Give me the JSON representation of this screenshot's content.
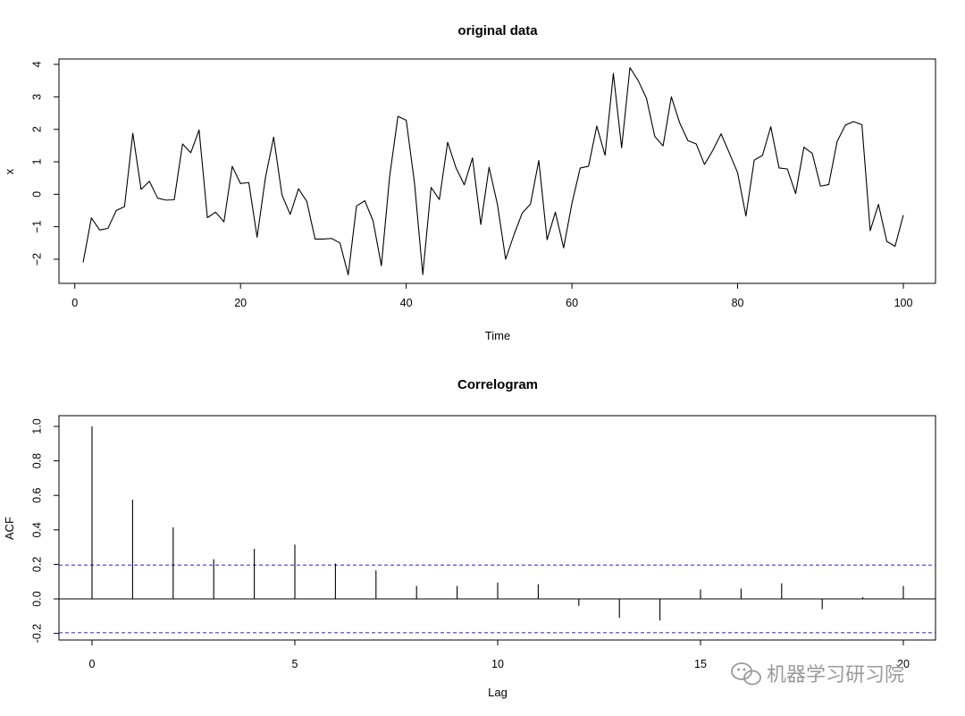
{
  "chart_data": [
    {
      "type": "line",
      "title": "original data",
      "xlabel": "Time",
      "ylabel": "x",
      "xlim": [
        1,
        100
      ],
      "ylim": [
        -2.5,
        3.9
      ],
      "xticks": [
        0,
        20,
        40,
        60,
        80,
        100
      ],
      "yticks": [
        -2,
        -1,
        0,
        1,
        2,
        3,
        4
      ],
      "grid": false,
      "x": [
        1,
        2,
        3,
        4,
        5,
        6,
        7,
        8,
        9,
        10,
        11,
        12,
        13,
        14,
        15,
        16,
        17,
        18,
        19,
        20,
        21,
        22,
        23,
        24,
        25,
        26,
        27,
        28,
        29,
        30,
        31,
        32,
        33,
        34,
        35,
        36,
        37,
        38,
        39,
        40,
        41,
        42,
        43,
        44,
        45,
        46,
        47,
        48,
        49,
        50,
        51,
        52,
        53,
        54,
        55,
        56,
        57,
        58,
        59,
        60,
        61,
        62,
        63,
        64,
        65,
        66,
        67,
        68,
        69,
        70,
        71,
        72,
        73,
        74,
        75,
        76,
        77,
        78,
        79,
        80,
        81,
        82,
        83,
        84,
        85,
        86,
        87,
        88,
        89,
        90,
        91,
        92,
        93,
        94,
        95,
        96,
        97,
        98,
        99,
        100
      ],
      "values": [
        -2.1,
        -0.73,
        -1.1,
        -1.05,
        -0.5,
        -0.38,
        1.88,
        0.15,
        0.4,
        -0.12,
        -0.18,
        -0.17,
        1.55,
        1.28,
        1.98,
        -0.72,
        -0.55,
        -0.85,
        0.86,
        0.33,
        0.36,
        -1.32,
        0.5,
        1.76,
        -0.02,
        -0.62,
        0.17,
        -0.22,
        -1.38,
        -1.38,
        -1.36,
        -1.5,
        -2.48,
        -0.36,
        -0.2,
        -0.82,
        -2.2,
        0.55,
        2.4,
        2.28,
        0.34,
        -2.47,
        0.21,
        -0.16,
        1.6,
        0.82,
        0.29,
        1.12,
        -0.93,
        0.83,
        -0.3,
        -2.0,
        -1.25,
        -0.58,
        -0.3,
        1.04,
        -1.4,
        -0.55,
        -1.65,
        -0.28,
        0.81,
        0.86,
        2.1,
        1.2,
        3.72,
        1.43,
        3.9,
        3.5,
        2.95,
        1.78,
        1.49,
        3.0,
        2.2,
        1.65,
        1.55,
        0.92,
        1.35,
        1.86,
        1.27,
        0.66,
        -0.67,
        1.05,
        1.2,
        2.08,
        0.81,
        0.78,
        0.02,
        1.45,
        1.26,
        0.25,
        0.3,
        1.62,
        2.13,
        2.24,
        2.14,
        -1.12,
        -0.31,
        -1.45,
        -1.6,
        -0.64
      ]
    },
    {
      "type": "bar",
      "title": "Correlogram",
      "xlabel": "Lag",
      "ylabel": "ACF",
      "xlim": [
        0,
        20
      ],
      "ylim": [
        -0.25,
        1.05
      ],
      "xticks": [
        0,
        5,
        10,
        15,
        20
      ],
      "yticks": [
        -0.2,
        0.0,
        0.2,
        0.4,
        0.6,
        0.8,
        1.0
      ],
      "tick_labels_x": [
        "0",
        "5",
        "10",
        "15",
        "20"
      ],
      "tick_labels_y": [
        "-0.2",
        "0.0",
        "0.2",
        "0.4",
        "0.6",
        "0.8",
        "1.0"
      ],
      "grid": false,
      "confidence_bound": 0.196,
      "x": [
        0,
        1,
        2,
        3,
        4,
        5,
        6,
        7,
        8,
        9,
        10,
        11,
        12,
        13,
        14,
        15,
        16,
        17,
        18,
        19,
        20
      ],
      "values": [
        1.0,
        0.575,
        0.415,
        0.23,
        0.29,
        0.315,
        0.205,
        0.165,
        0.075,
        0.075,
        0.095,
        0.085,
        -0.04,
        -0.11,
        -0.125,
        0.055,
        0.06,
        0.09,
        -0.06,
        0.01,
        0.075
      ]
    }
  ],
  "chart_colors": {
    "series": "#000000",
    "confidence": "#3b3bdd"
  },
  "watermark": {
    "text": "机器学习研习院",
    "icon": "wechat-icon"
  }
}
